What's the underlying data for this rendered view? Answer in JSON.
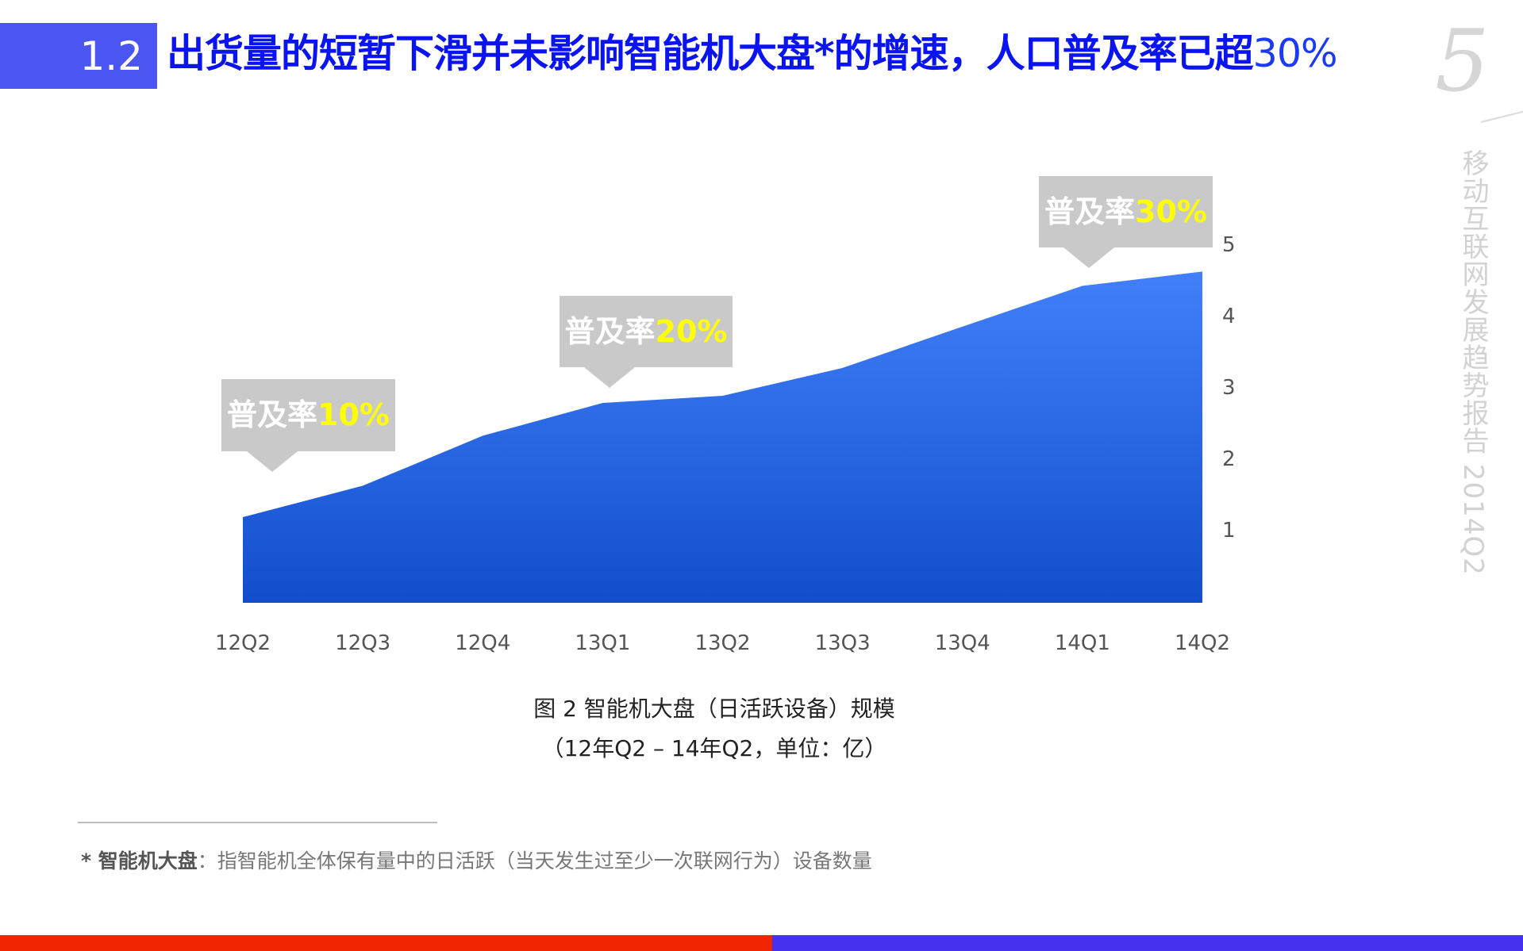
{
  "header": {
    "section_number": "1.2",
    "title": "出货量的短暂下滑并未影响智能机大盘*的增速，人口普及率已超",
    "title_highlight": "30%",
    "box_color": "#4B55F2",
    "title_color": "#0A14F0"
  },
  "page": {
    "number": "5",
    "side_title": "移动互联网发展趋势报告 2014Q2"
  },
  "callouts": [
    {
      "label": "普及率",
      "value": "10%"
    },
    {
      "label": "普及率",
      "value": "20%"
    },
    {
      "label": "普及率",
      "value": "30%"
    }
  ],
  "caption": {
    "line1": "图 2 智能机大盘（日活跃设备）规模",
    "line2": "（12年Q2 – 14年Q2，单位：亿）"
  },
  "footnote": {
    "term": "* 智能机大盘",
    "definition": "：指智能机全体保有量中的日活跃（当天发生过至少一次联网行为）设备数量"
  },
  "colors": {
    "area_top": "#4280FA",
    "area_bottom": "#124ECC",
    "callout_bg": "#C9C9C9",
    "callout_highlight": "#FFFF00",
    "bottom_bar_left": "#F02400",
    "bottom_bar_right": "#4432EE"
  },
  "chart_data": {
    "type": "area",
    "title": "图 2 智能机大盘（日活跃设备）规模",
    "subtitle": "（12年Q2 – 14年Q2，单位：亿）",
    "categories": [
      "12Q2",
      "12Q3",
      "12Q4",
      "13Q1",
      "13Q2",
      "13Q3",
      "13Q4",
      "14Q1",
      "14Q2"
    ],
    "series": [
      {
        "name": "智能机大盘（日活跃设备）",
        "values": [
          1.2,
          1.64,
          2.34,
          2.8,
          2.9,
          3.29,
          3.87,
          4.44,
          4.64
        ]
      }
    ],
    "y_ticks": [
      "1",
      "2",
      "3",
      "4",
      "5"
    ],
    "ylim": [
      0,
      5
    ],
    "y_axis_position": "right",
    "grid": false,
    "legend": "none",
    "xlabel": "",
    "ylabel": "亿",
    "annotations": [
      {
        "category": "12Q2",
        "text": "普及率10%"
      },
      {
        "category": "13Q1",
        "text": "普及率20%"
      },
      {
        "category": "14Q1",
        "text": "普及率30%"
      }
    ]
  }
}
